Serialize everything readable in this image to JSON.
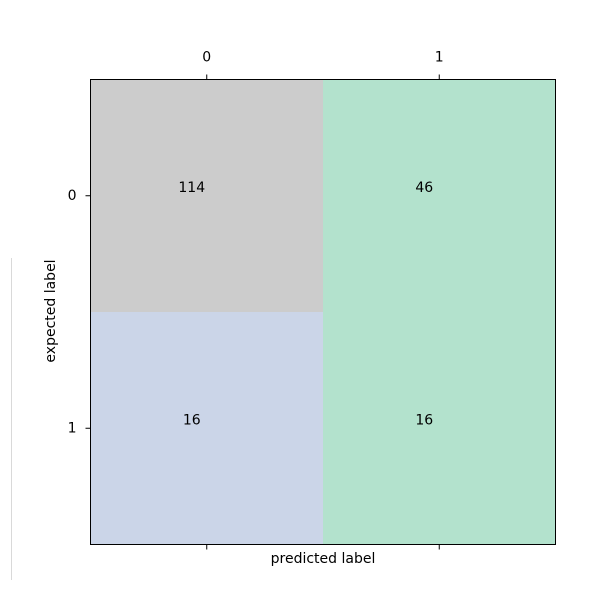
{
  "chart_data": {
    "type": "heatmap",
    "title": "",
    "x_categories": [
      "0",
      "1"
    ],
    "y_categories": [
      "0",
      "1"
    ],
    "xlabel": "predicted label",
    "ylabel": "expected label",
    "values": [
      [
        114,
        46
      ],
      [
        16,
        16
      ]
    ],
    "cell_colors": [
      [
        "#cccccc",
        "#b3e2cd"
      ],
      [
        "#cbd5e8",
        "#b3e2cd"
      ]
    ],
    "x_tick_position": "top",
    "grid": false
  }
}
